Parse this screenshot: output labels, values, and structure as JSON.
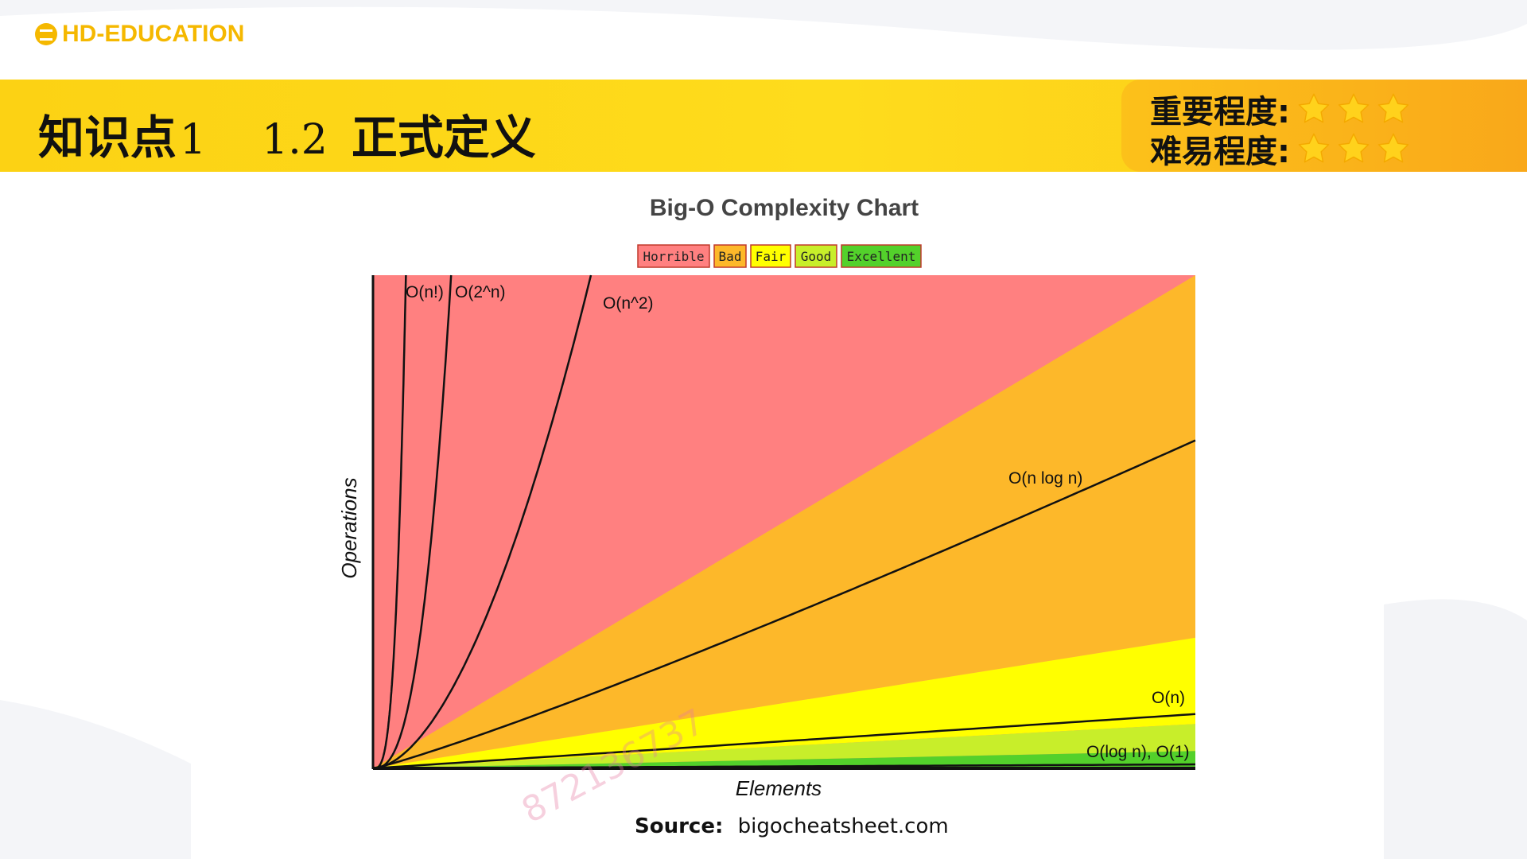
{
  "header": {
    "logo_text": "HD-EDUCATION",
    "title_prefix": "知识点",
    "title_num": "1",
    "title_section": "1.2",
    "title_name": "正式定义",
    "importance_label": "重要程度:",
    "importance_stars": 3,
    "difficulty_label": "难易程度:",
    "difficulty_stars": 3
  },
  "colors": {
    "banner": "#fcd214",
    "horrible": "#ff8080",
    "bad": "#fdb82a",
    "fair": "#ffff00",
    "good": "#c8ee2a",
    "excellent": "#53d12b",
    "star": "#ffd21c"
  },
  "chart_data": {
    "type": "area",
    "title": "Big-O Complexity Chart",
    "xlabel": "Elements",
    "ylabel": "Operations",
    "legend": [
      "Horrible",
      "Bad",
      "Fair",
      "Good",
      "Excellent"
    ],
    "legend_placement": "top-center",
    "grid": false,
    "regions": [
      {
        "name": "Horrible",
        "color": "#ff8080"
      },
      {
        "name": "Bad",
        "color": "#fdb82a"
      },
      {
        "name": "Fair",
        "color": "#ffff00"
      },
      {
        "name": "Good",
        "color": "#c8ee2a"
      },
      {
        "name": "Excellent",
        "color": "#53d12b"
      }
    ],
    "series": [
      {
        "name": "O(n!)",
        "label": "O(n!)"
      },
      {
        "name": "O(2^n)",
        "label": "O(2^n)"
      },
      {
        "name": "O(n^2)",
        "label": "O(n^2)"
      },
      {
        "name": "O(n log n)",
        "label": "O(n log n)"
      },
      {
        "name": "O(n)",
        "label": "O(n)"
      },
      {
        "name": "O(log n), O(1)",
        "label": "O(log n), O(1)"
      }
    ]
  },
  "source": {
    "label": "Source:",
    "text": "bigocheatsheet.com"
  },
  "watermark": "872136737"
}
